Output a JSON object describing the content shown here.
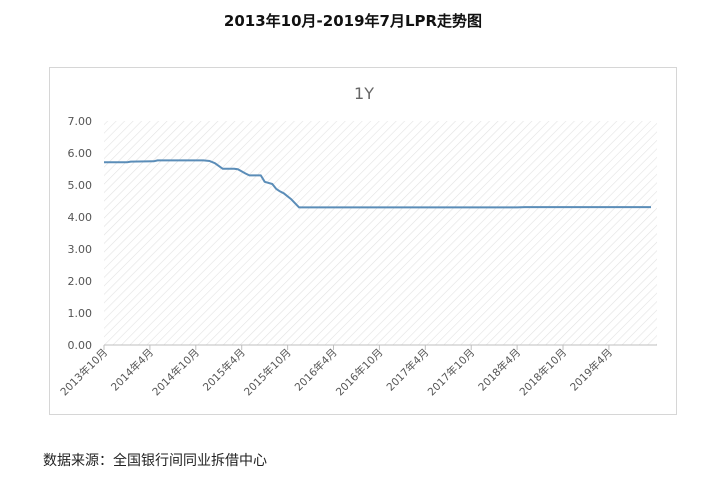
{
  "page_title": "2013年10月-2019年7月LPR走势图",
  "source_note": "数据来源：全国银行间同业拆借中心",
  "chart_data": {
    "type": "line",
    "title": "1Y",
    "xlabel": "",
    "ylabel": "",
    "ylim": [
      0,
      7
    ],
    "yticks": [
      "0.00",
      "1.00",
      "2.00",
      "3.00",
      "4.00",
      "5.00",
      "6.00",
      "7.00"
    ],
    "xticks": [
      {
        "t": 0,
        "label": "2013年10月"
      },
      {
        "t": 6,
        "label": "2014年4月"
      },
      {
        "t": 12,
        "label": "2014年10月"
      },
      {
        "t": 18,
        "label": "2015年4月"
      },
      {
        "t": 24,
        "label": "2015年10月"
      },
      {
        "t": 30,
        "label": "2016年4月"
      },
      {
        "t": 36,
        "label": "2016年10月"
      },
      {
        "t": 42,
        "label": "2017年4月"
      },
      {
        "t": 48,
        "label": "2017年10月"
      },
      {
        "t": 54,
        "label": "2018年4月"
      },
      {
        "t": 60,
        "label": "2018年10月"
      },
      {
        "t": 66,
        "label": "2019年4月"
      }
    ],
    "x_end": 71.5,
    "grid": "hatched",
    "line_color": "#5b8db8",
    "series": [
      {
        "x": [
          0,
          3,
          3.5,
          6.5,
          7,
          13,
          13.8,
          14.5,
          15.5,
          17,
          17.5,
          18.5,
          19,
          20.5,
          21,
          22,
          22.5,
          23,
          23.5,
          24.5,
          25.5,
          54,
          55,
          71.5
        ],
        "values": [
          5.71,
          5.71,
          5.73,
          5.74,
          5.77,
          5.77,
          5.75,
          5.68,
          5.51,
          5.51,
          5.49,
          5.36,
          5.3,
          5.3,
          5.1,
          5.03,
          4.88,
          4.8,
          4.74,
          4.55,
          4.3,
          4.3,
          4.31,
          4.31
        ]
      }
    ]
  }
}
